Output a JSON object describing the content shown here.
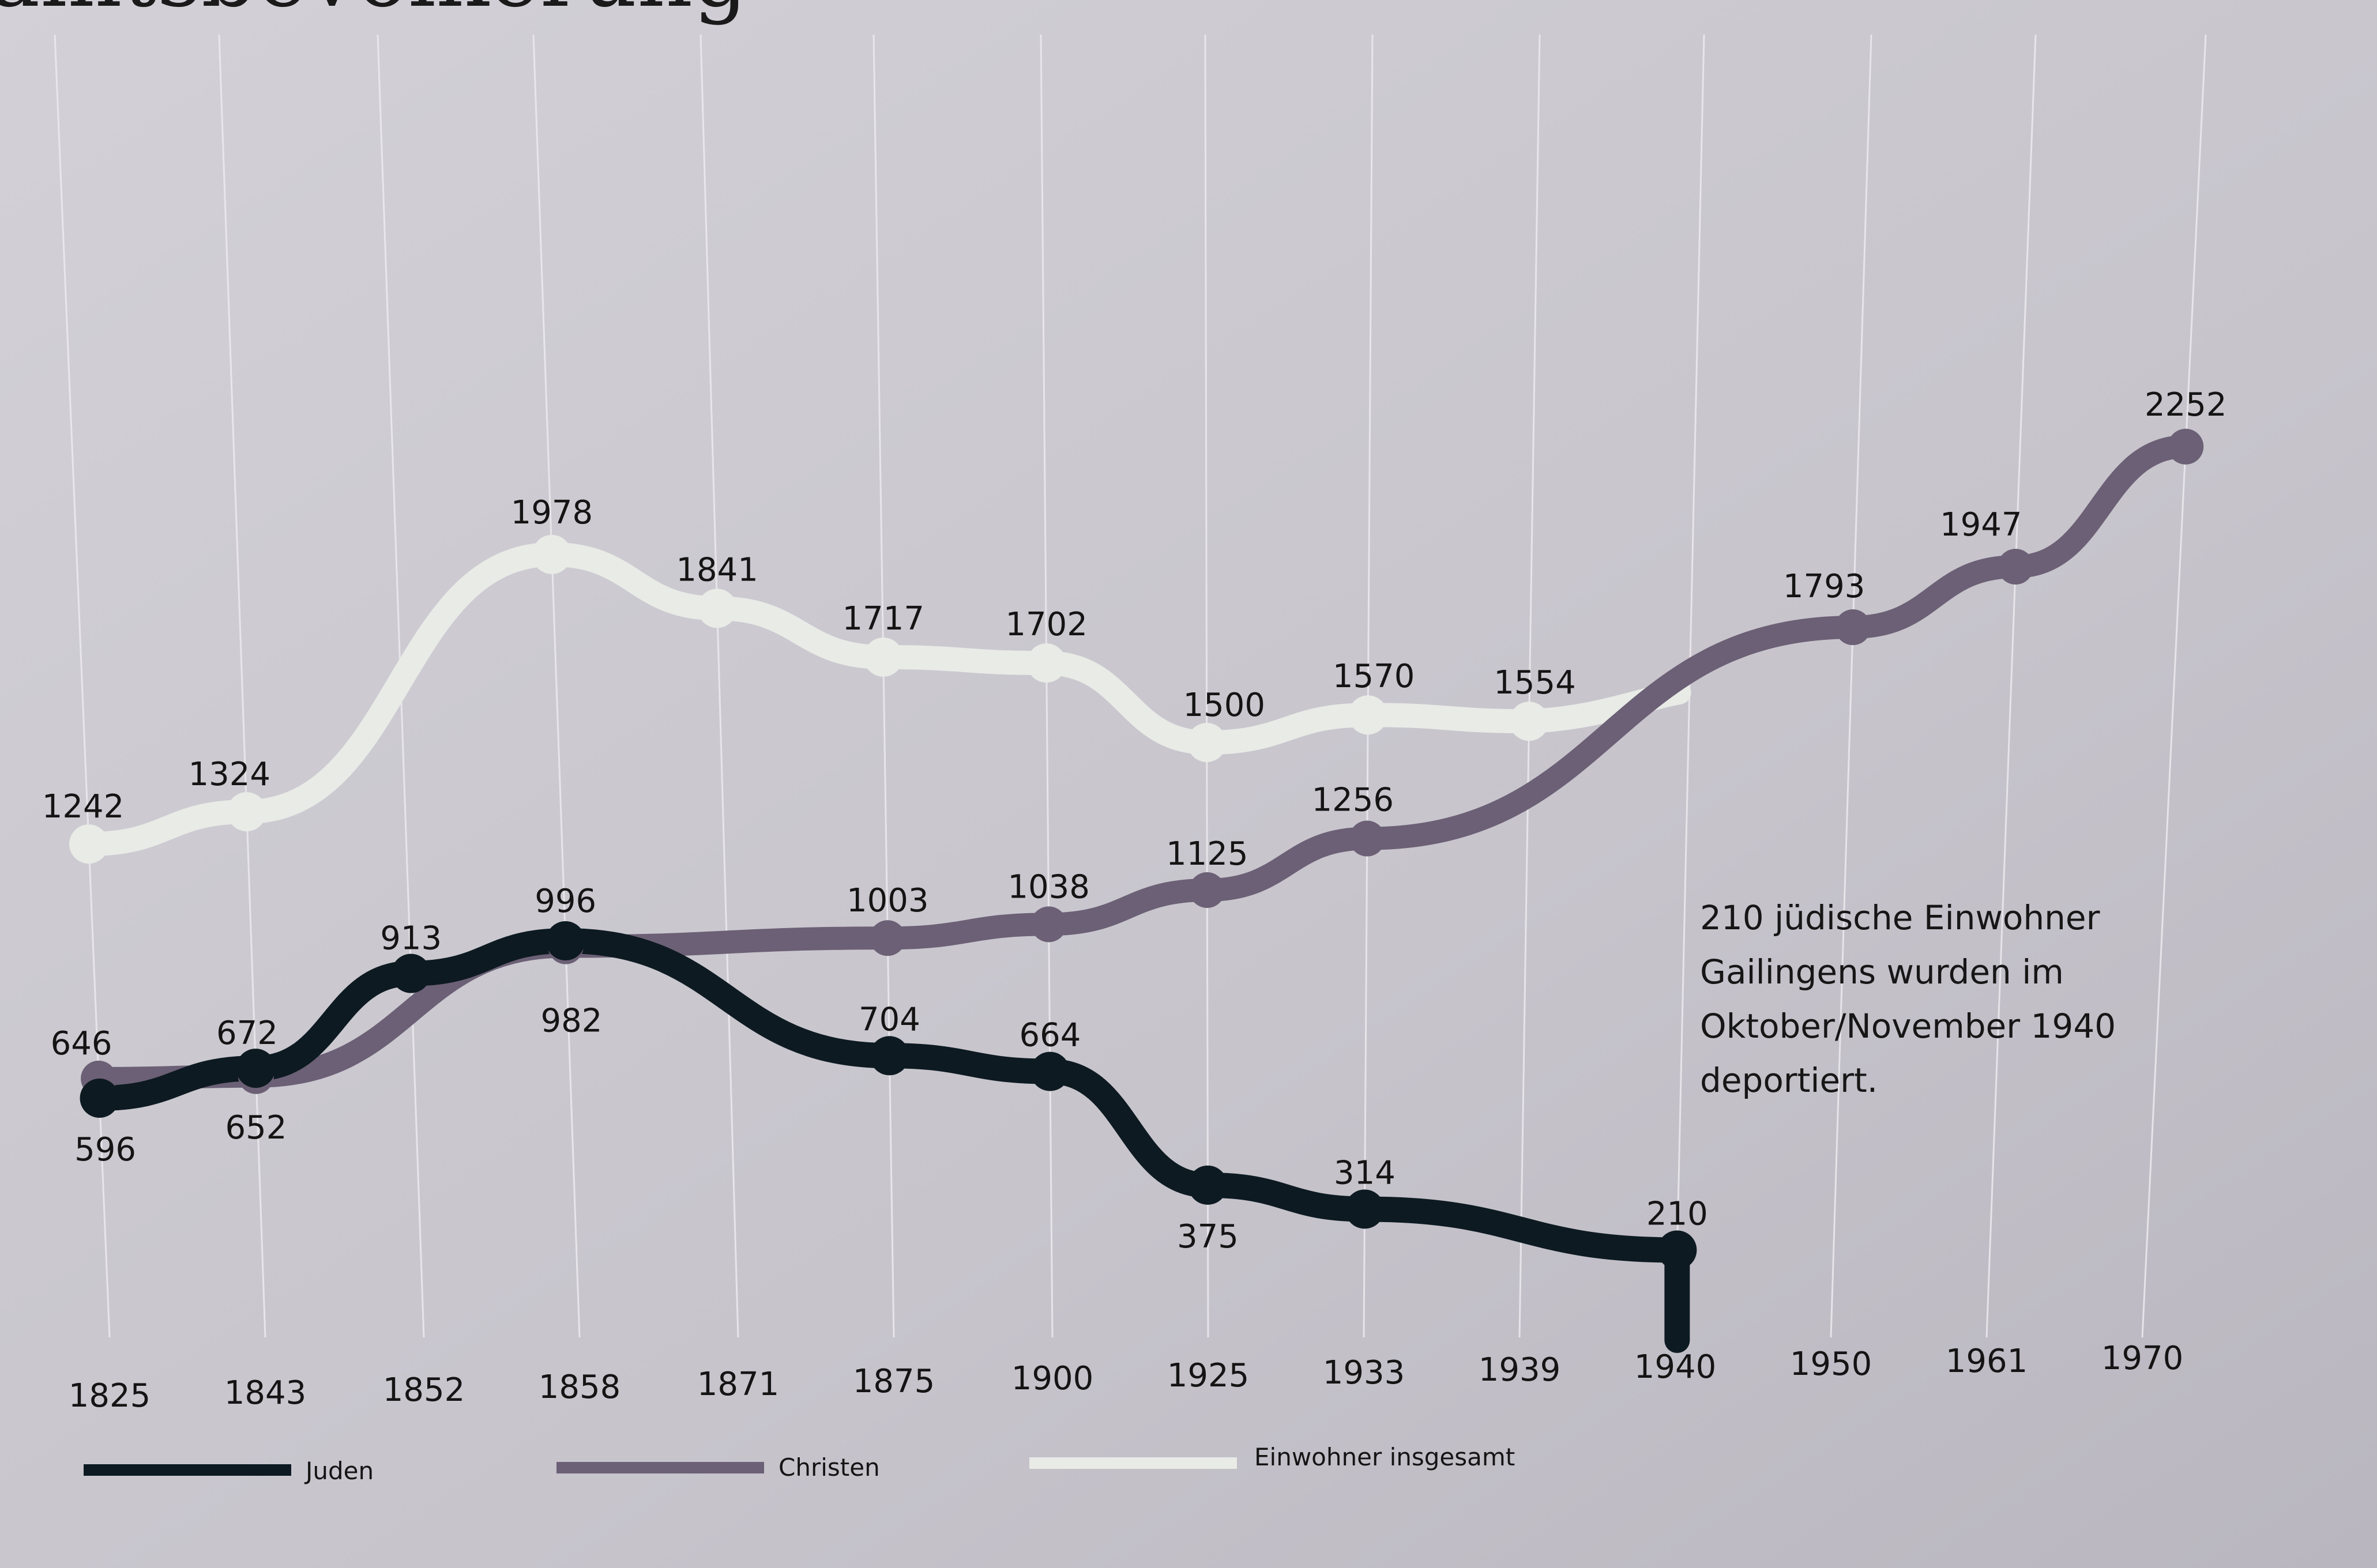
{
  "header": {
    "title_fragment": "amtsbevölkerung"
  },
  "colors": {
    "background": "#c6c3cb",
    "juden": "#0d1a21",
    "christen": "#6b6075",
    "insgesamt": "#e8ebe6",
    "gridline": "#eceaee"
  },
  "chart_data": {
    "type": "line",
    "categories": [
      "1825",
      "1843",
      "1852",
      "1858",
      "1871",
      "1875",
      "1900",
      "1925",
      "1933",
      "1939",
      "1940",
      "1950",
      "1961",
      "1970"
    ],
    "series": [
      {
        "name": "Juden",
        "color": "#0d1a21",
        "points": [
          {
            "x": "1825",
            "y": 596,
            "label": "596"
          },
          {
            "x": "1843",
            "y": 672,
            "label": "672"
          },
          {
            "x": "1852",
            "y": 913,
            "label": "913"
          },
          {
            "x": "1858",
            "y": 996,
            "label": "996"
          },
          {
            "x": "1875",
            "y": 704,
            "label": "704"
          },
          {
            "x": "1900",
            "y": 664,
            "label": "664"
          },
          {
            "x": "1925",
            "y": 375,
            "label": "375"
          },
          {
            "x": "1933",
            "y": 314,
            "label": "314"
          },
          {
            "x": "1940",
            "y": 210,
            "label": "210"
          }
        ]
      },
      {
        "name": "Christen",
        "color": "#6b6075",
        "points": [
          {
            "x": "1825",
            "y": 646,
            "label": "646"
          },
          {
            "x": "1843",
            "y": 652,
            "label": "652"
          },
          {
            "x": "1858",
            "y": 982,
            "label": "982"
          },
          {
            "x": "1875",
            "y": 1003,
            "label": "1003"
          },
          {
            "x": "1900",
            "y": 1038,
            "label": "1038"
          },
          {
            "x": "1925",
            "y": 1125,
            "label": "1125"
          },
          {
            "x": "1933",
            "y": 1256,
            "label": "1256"
          },
          {
            "x": "1950",
            "y": 1793,
            "label": "1793"
          },
          {
            "x": "1961",
            "y": 1947,
            "label": "1947"
          },
          {
            "x": "1970",
            "y": 2252,
            "label": "2252"
          }
        ]
      },
      {
        "name": "Einwohner insgesamt",
        "color": "#e8ebe6",
        "points": [
          {
            "x": "1825",
            "y": 1242,
            "label": "1242"
          },
          {
            "x": "1843",
            "y": 1324,
            "label": "1324"
          },
          {
            "x": "1858",
            "y": 1978,
            "label": "1978"
          },
          {
            "x": "1871",
            "y": 1841,
            "label": "1841"
          },
          {
            "x": "1875",
            "y": 1717,
            "label": "1717"
          },
          {
            "x": "1900",
            "y": 1702,
            "label": "1702"
          },
          {
            "x": "1925",
            "y": 1500,
            "label": "1500"
          },
          {
            "x": "1933",
            "y": 1570,
            "label": "1570"
          },
          {
            "x": "1939",
            "y": 1554,
            "label": "1554"
          }
        ]
      }
    ],
    "annotation": [
      "210 jüdische Einwohner",
      "Gailingens wurden im",
      "Oktober/November 1940",
      "deportiert."
    ],
    "legend": [
      "Juden",
      "Christen",
      "Einwohner insgesamt"
    ],
    "legend_position": "bottom",
    "grid": "vertical"
  }
}
